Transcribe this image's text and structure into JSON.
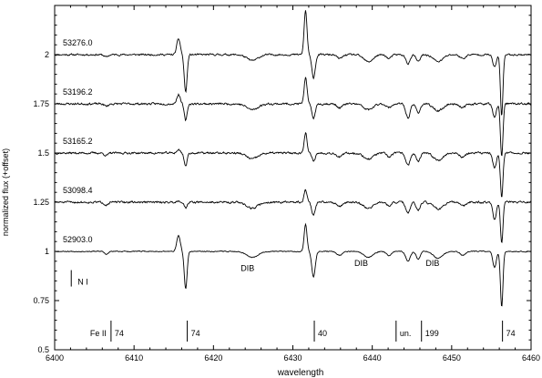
{
  "chart_data": {
    "type": "line",
    "title": "",
    "xlabel": "wavelength",
    "ylabel": "normalized flux (+offset)",
    "xlim": [
      6400,
      6460
    ],
    "ylim": [
      0.5,
      2.25
    ],
    "xticks": [
      6400,
      6410,
      6420,
      6430,
      6440,
      6450,
      6460
    ],
    "xtick_labels": [
      "6400",
      "6410",
      "6420",
      "6430",
      "6440",
      "6450",
      "6460"
    ],
    "yticks": [
      0.5,
      0.75,
      1,
      1.25,
      1.5,
      1.75,
      2
    ],
    "ytick_labels": [
      "0.5",
      "0.75",
      "1",
      "1.25",
      "1.5",
      "1.75",
      "2"
    ],
    "grid": false,
    "legend": "none",
    "features": [
      {
        "center": 6416.5,
        "depth": 0.19,
        "width": 0.18,
        "kind": "absorption"
      },
      {
        "center": 6415.6,
        "depth": -0.08,
        "width": 0.22,
        "kind": "emission"
      },
      {
        "center": 6432.6,
        "depth": 0.13,
        "width": 0.22,
        "kind": "absorption"
      },
      {
        "center": 6431.6,
        "depth": -0.14,
        "width": 0.18,
        "kind": "emission"
      },
      {
        "center": 6456.3,
        "depth": 0.28,
        "width": 0.16,
        "kind": "absorption"
      },
      {
        "center": 6455.4,
        "depth": 0.08,
        "width": 0.22,
        "kind": "absorption"
      },
      {
        "center": 6424.9,
        "depth": 0.03,
        "width": 0.7,
        "kind": "DIB"
      },
      {
        "center": 6439.5,
        "depth": 0.03,
        "width": 0.6,
        "kind": "DIB"
      },
      {
        "center": 6444.5,
        "depth": 0.05,
        "width": 0.28,
        "kind": "absorption"
      },
      {
        "center": 6445.8,
        "depth": 0.04,
        "width": 0.25,
        "kind": "absorption"
      },
      {
        "center": 6448.3,
        "depth": 0.035,
        "width": 0.6,
        "kind": "DIB"
      },
      {
        "center": 6406.5,
        "depth": 0.015,
        "width": 0.25,
        "kind": "absorption"
      },
      {
        "center": 6435.9,
        "depth": 0.02,
        "width": 0.35,
        "kind": "absorption"
      },
      {
        "center": 6442.1,
        "depth": 0.02,
        "width": 0.3,
        "kind": "absorption"
      },
      {
        "center": 6451.4,
        "depth": 0.02,
        "width": 0.35,
        "kind": "absorption"
      }
    ],
    "series": [
      {
        "name": "53276.0",
        "offset": 2.0,
        "feature_scale": [
          1.0,
          1.0,
          0.9,
          1.6,
          1.1,
          0.8,
          1.0,
          1.2,
          0.9,
          0.9,
          1.0,
          0.8,
          1.0,
          1.0,
          1.0
        ],
        "noise": 0.008,
        "seed": 11
      },
      {
        "name": "53196.2",
        "offset": 1.75,
        "feature_scale": [
          0.45,
          0.6,
          0.55,
          0.95,
          0.95,
          0.9,
          1.0,
          1.0,
          1.4,
          1.1,
          1.0,
          0.8,
          1.0,
          1.0,
          1.0
        ],
        "noise": 0.009,
        "seed": 23
      },
      {
        "name": "53165.2",
        "offset": 1.5,
        "feature_scale": [
          0.35,
          0.2,
          0.3,
          0.75,
          0.8,
          1.0,
          1.0,
          1.0,
          1.2,
          1.1,
          1.0,
          0.8,
          1.0,
          1.0,
          1.0
        ],
        "noise": 0.009,
        "seed": 37
      },
      {
        "name": "53098.4",
        "offset": 1.25,
        "feature_scale": [
          0.15,
          0.1,
          0.5,
          0.45,
          0.75,
          1.1,
          1.0,
          1.0,
          1.1,
          1.0,
          1.0,
          0.8,
          1.0,
          1.0,
          1.0
        ],
        "noise": 0.009,
        "seed": 51
      },
      {
        "name": "52903.0",
        "offset": 1.0,
        "feature_scale": [
          1.0,
          1.0,
          1.0,
          1.0,
          1.0,
          1.0,
          1.0,
          1.0,
          1.0,
          1.0,
          1.0,
          1.0,
          1.0,
          1.0,
          1.0
        ],
        "noise": 0.004,
        "seed": 67
      }
    ],
    "annotations": [
      {
        "text": "DIB",
        "x": 6424.3,
        "y": 0.9
      },
      {
        "text": "DIB",
        "x": 6438.6,
        "y": 0.925
      },
      {
        "text": "DIB",
        "x": 6447.6,
        "y": 0.925
      },
      {
        "text": "N I",
        "x": 6400.6,
        "y": 0.84,
        "marker": true
      }
    ],
    "line_ids": [
      {
        "x": 6407.1,
        "label": "74",
        "prefix": "Fe II"
      },
      {
        "x": 6416.7,
        "label": "74"
      },
      {
        "x": 6432.7,
        "label": "40"
      },
      {
        "x": 6443.0,
        "label": "un."
      },
      {
        "x": 6446.2,
        "label": "199"
      },
      {
        "x": 6456.4,
        "label": "74"
      }
    ]
  }
}
